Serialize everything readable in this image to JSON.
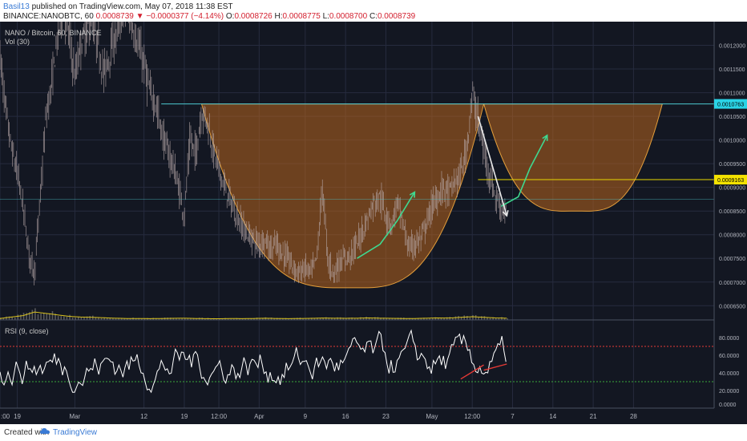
{
  "header": {
    "author": "Basil13",
    "published": " published on TradingView.com, May 07, 2018 11:38 EST",
    "symbol": "BINANCE:NANOBTC, 60",
    "last": "0.0008739",
    "change_arrow": "▼",
    "change": "−0.0000377 (−4.14%)",
    "o_label": "O:",
    "o": "0.0008726",
    "h_label": "H:",
    "h": "0.0008775",
    "l_label": "L:",
    "l": "0.0008700",
    "c_label": "C:",
    "c": "0.0008739"
  },
  "footer": {
    "created": "Created with",
    "brand": "TradingView"
  },
  "colors": {
    "background": "#131722",
    "grid": "#262b3e",
    "candles": "#b7a8a8",
    "pattern_fill": "#b8641d",
    "pattern_stroke": "#e39e3b",
    "resistance_line": "#4cc8d0",
    "support_line": "#e8d800",
    "price_badge_cyan": "#2ad4e6",
    "price_badge_yellow": "#f4e200",
    "rsi_line": "#ffffff",
    "rsi_upper": "#e53935",
    "rsi_lower": "#3aa83a",
    "volume_ma": "#d9c21e",
    "arrow_green": "#3fd890"
  },
  "chart_data": [
    {
      "type": "candlestick",
      "title": "NANO / Bitcoin, 60, BINANCE",
      "study": "Vol (30)",
      "price_ticks": [
        "0.0012000",
        "0.0011500",
        "0.0011000",
        "0.0010500",
        "0.0010000",
        "0.0009500",
        "0.0009000",
        "0.0008500",
        "0.0008000",
        "0.0007500",
        "0.0007000",
        "0.0006500"
      ],
      "ylim": [
        0.00062,
        0.00125
      ],
      "time_ticks": [
        {
          "label": ":00",
          "x": 0
        },
        {
          "label": "19",
          "x": 3
        },
        {
          "label": "Mar",
          "x": 13
        },
        {
          "label": "12",
          "x": 25
        },
        {
          "label": "19",
          "x": 32
        },
        {
          "label": "12:00",
          "x": 38
        },
        {
          "label": "Apr",
          "x": 45
        },
        {
          "label": "9",
          "x": 53
        },
        {
          "label": "16",
          "x": 60
        },
        {
          "label": "23",
          "x": 67
        },
        {
          "label": "May",
          "x": 75
        },
        {
          "label": "12:00",
          "x": 82
        },
        {
          "label": "7",
          "x": 89
        },
        {
          "label": "14",
          "x": 96
        },
        {
          "label": "21",
          "x": 103
        },
        {
          "label": "28",
          "x": 110
        }
      ],
      "xlim": [
        0,
        124
      ],
      "price_path": [
        [
          0,
          0.00118
        ],
        [
          1,
          0.00106
        ],
        [
          2,
          0.00098
        ],
        [
          3,
          0.00093
        ],
        [
          4,
          0.00086
        ],
        [
          5,
          0.00076
        ],
        [
          6,
          0.00072
        ],
        [
          7,
          0.00088
        ],
        [
          8,
          0.00105
        ],
        [
          9,
          0.00112
        ],
        [
          10,
          0.00122
        ],
        [
          11,
          0.00128
        ],
        [
          12,
          0.00122
        ],
        [
          13,
          0.00113
        ],
        [
          14,
          0.0012
        ],
        [
          15,
          0.00123
        ],
        [
          16,
          0.00126
        ],
        [
          17,
          0.0012
        ],
        [
          18,
          0.00114
        ],
        [
          19,
          0.00118
        ],
        [
          20,
          0.00122
        ],
        [
          21,
          0.00126
        ],
        [
          22,
          0.00128
        ],
        [
          23,
          0.00124
        ],
        [
          24,
          0.0012
        ],
        [
          25,
          0.00116
        ],
        [
          26,
          0.0011
        ],
        [
          27,
          0.00108
        ],
        [
          28,
          0.00102
        ],
        [
          29,
          0.00098
        ],
        [
          30,
          0.00095
        ],
        [
          31,
          0.0009
        ],
        [
          32,
          0.00084
        ],
        [
          33,
          0.001
        ],
        [
          34,
          0.00097
        ],
        [
          35,
          0.00106
        ],
        [
          36,
          0.00104
        ],
        [
          37,
          0.00098
        ],
        [
          38,
          0.00094
        ],
        [
          39,
          0.0009
        ],
        [
          40,
          0.00087
        ],
        [
          41,
          0.00084
        ],
        [
          42,
          0.00082
        ],
        [
          43,
          0.0008
        ],
        [
          44,
          0.00079
        ],
        [
          45,
          0.00078
        ],
        [
          46,
          0.00079
        ],
        [
          47,
          0.00077
        ],
        [
          48,
          0.00078
        ],
        [
          49,
          0.00076
        ],
        [
          50,
          0.00075
        ],
        [
          51,
          0.00073
        ],
        [
          52,
          0.00072
        ],
        [
          53,
          0.00073
        ],
        [
          54,
          0.00072
        ],
        [
          55,
          0.00075
        ],
        [
          56,
          0.0009
        ],
        [
          57,
          0.00074
        ],
        [
          58,
          0.00072
        ],
        [
          59,
          0.00074
        ],
        [
          60,
          0.00075
        ],
        [
          61,
          0.00076
        ],
        [
          62,
          0.00078
        ],
        [
          63,
          0.00081
        ],
        [
          64,
          0.00084
        ],
        [
          65,
          0.00087
        ],
        [
          66,
          0.00088
        ],
        [
          67,
          0.00084
        ],
        [
          68,
          0.00082
        ],
        [
          69,
          0.00087
        ],
        [
          70,
          0.00082
        ],
        [
          71,
          0.00077
        ],
        [
          72,
          0.00078
        ],
        [
          73,
          0.00079
        ],
        [
          74,
          0.00082
        ],
        [
          75,
          0.00086
        ],
        [
          76,
          0.00088
        ],
        [
          77,
          0.0009
        ],
        [
          78,
          0.00089
        ],
        [
          79,
          0.00091
        ],
        [
          80,
          0.00093
        ],
        [
          81,
          0.00098
        ],
        [
          82,
          0.0011
        ],
        [
          83,
          0.00104
        ],
        [
          84,
          0.00098
        ],
        [
          85,
          0.00093
        ],
        [
          86,
          0.00088
        ],
        [
          87,
          0.00086
        ],
        [
          88,
          0.00084
        ]
      ],
      "volume_scale": [
        0,
        1
      ],
      "volume_path": [
        [
          0,
          0.1
        ],
        [
          2,
          0.2
        ],
        [
          4,
          0.3
        ],
        [
          6,
          0.55
        ],
        [
          8,
          0.45
        ],
        [
          10,
          0.35
        ],
        [
          12,
          0.25
        ],
        [
          14,
          0.2
        ],
        [
          16,
          0.18
        ],
        [
          18,
          0.15
        ],
        [
          20,
          0.12
        ],
        [
          22,
          0.1
        ],
        [
          24,
          0.1
        ],
        [
          26,
          0.09
        ],
        [
          28,
          0.1
        ],
        [
          30,
          0.11
        ],
        [
          32,
          0.12
        ],
        [
          34,
          0.1
        ],
        [
          36,
          0.09
        ],
        [
          38,
          0.08
        ],
        [
          40,
          0.1
        ],
        [
          42,
          0.09
        ],
        [
          44,
          0.1
        ],
        [
          46,
          0.12
        ],
        [
          48,
          0.1
        ],
        [
          50,
          0.09
        ],
        [
          52,
          0.1
        ],
        [
          54,
          0.11
        ],
        [
          56,
          0.13
        ],
        [
          58,
          0.12
        ],
        [
          60,
          0.11
        ],
        [
          62,
          0.12
        ],
        [
          64,
          0.14
        ],
        [
          66,
          0.12
        ],
        [
          68,
          0.11
        ],
        [
          70,
          0.1
        ],
        [
          72,
          0.1
        ],
        [
          74,
          0.12
        ],
        [
          76,
          0.14
        ],
        [
          78,
          0.13
        ],
        [
          80,
          0.18
        ],
        [
          82,
          0.22
        ],
        [
          84,
          0.18
        ],
        [
          86,
          0.14
        ],
        [
          88,
          0.12
        ]
      ],
      "drawings": {
        "resistance_price": 0.0010763,
        "support_price": 0.0009163,
        "support2_price": 0.000875,
        "resistance_x": [
          28,
          125
        ],
        "support_x": [
          83,
          125
        ],
        "support2_x": [
          0,
          125
        ],
        "cup_main": {
          "x_start": 35,
          "x_end": 84,
          "top": 0.0010763,
          "bottom": 0.000688,
          "bottom_x": 61
        },
        "cup_proj": {
          "x_start": 84,
          "x_end": 115,
          "top": 0.0010763,
          "bottom": 0.00085,
          "bottom_x": 100
        },
        "arrows": [
          {
            "color": "green",
            "points": [
              [
                62,
                0.00075
              ],
              [
                66,
                0.00078
              ],
              [
                69,
                0.00083
              ],
              [
                72,
                0.00089
              ]
            ]
          },
          {
            "color": "green",
            "points": [
              [
                87,
                0.00086
              ],
              [
                90,
                0.00088
              ],
              [
                92,
                0.00094
              ],
              [
                95,
                0.00101
              ]
            ]
          },
          {
            "color": "white",
            "points": [
              [
                83,
                0.00105
              ],
              [
                88,
                0.00084
              ]
            ]
          }
        ],
        "last_price_labels": [
          {
            "text": "0.0010763",
            "price": 0.0010763,
            "color": "cyan"
          },
          {
            "text": "0.0009163",
            "price": 0.0009163,
            "color": "yellow"
          }
        ]
      }
    },
    {
      "type": "line",
      "title": "RSI (9, close)",
      "y_ticks": [
        "80.0000",
        "60.0000",
        "40.0000",
        "20.0000",
        "0.0000"
      ],
      "ylim": [
        0,
        100
      ],
      "upper_band": 70,
      "lower_band": 30,
      "seed_mid": 50,
      "trend_lines": [
        {
          "color": "red",
          "points": [
            [
              80,
              33
            ],
            [
              84,
              49
            ]
          ]
        },
        {
          "color": "red",
          "points": [
            [
              84,
              43
            ],
            [
              88,
              50
            ]
          ]
        }
      ]
    }
  ]
}
